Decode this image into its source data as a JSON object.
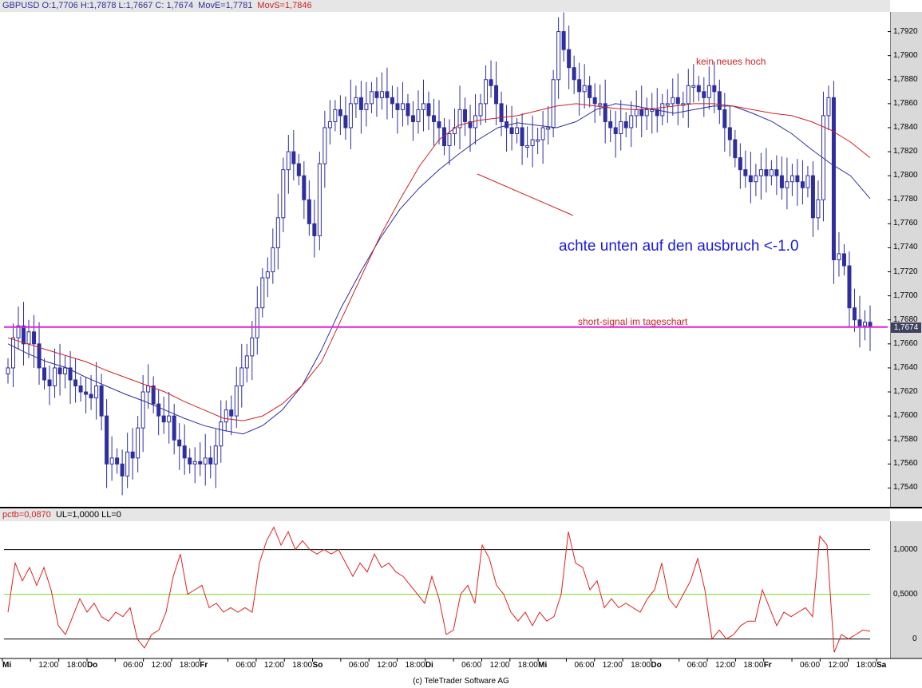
{
  "header_main": {
    "symbol_ohlc": "GBPUSD O:1,7706 H:1,7878 L:1,7667 C: 1,7674",
    "move": "MovE=1,7781",
    "movs": "MovS=1,7846"
  },
  "header_ind": {
    "pctb": "pctb=0,0870",
    "ul_ll": "UL=1,0000 LL=0"
  },
  "colors": {
    "candle": "#2e2e9e",
    "ema": "#2e2e9e",
    "sma": "#cc2222",
    "support": "#e020e0",
    "pctb": "#dd2222",
    "ul_line": "#000000",
    "ll_line": "#000000",
    "mid_line": "#7cdc2c"
  },
  "annotations": {
    "kein_hoch": "kein neues hoch",
    "ausbruch": "achte unten auf den ausbruch <-1.0",
    "short_signal": "short-signal im tageschart"
  },
  "price_label": "1,7674",
  "credit": "(c) TeleTrader Software AG",
  "chart_data": [
    {
      "type": "candlestick",
      "y_ticks": [
        "1,7920",
        "1,7900",
        "1,7880",
        "1,7860",
        "1,7840",
        "1,7820",
        "1,7800",
        "1,7780",
        "1,7760",
        "1,7740",
        "1,7720",
        "1,7700",
        "1,7680",
        "1,7660",
        "1,7640",
        "1,7620",
        "1,7600",
        "1,7580",
        "1,7560",
        "1,7540"
      ],
      "ylim": [
        1.7525,
        1.7935
      ],
      "support_level": 1.7674,
      "x_ticks": [
        {
          "label": "Mi",
          "bold": true
        },
        {
          "label": "12:00"
        },
        {
          "label": "18:00"
        },
        {
          "label": "Do",
          "bold": true
        },
        {
          "label": "06:00"
        },
        {
          "label": "12:00"
        },
        {
          "label": "18:00"
        },
        {
          "label": "Fr",
          "bold": true
        },
        {
          "label": "06:00"
        },
        {
          "label": "12:00"
        },
        {
          "label": "18:00"
        },
        {
          "label": "So",
          "bold": true
        },
        {
          "label": "06:00"
        },
        {
          "label": "12:00"
        },
        {
          "label": "18:00"
        },
        {
          "label": "Di",
          "bold": true
        },
        {
          "label": "06:00"
        },
        {
          "label": "12:00"
        },
        {
          "label": "18:00"
        },
        {
          "label": "Mi",
          "bold": true
        },
        {
          "label": "06:00"
        },
        {
          "label": "12:00"
        },
        {
          "label": "18:00"
        },
        {
          "label": "Do",
          "bold": true
        },
        {
          "label": "06:00"
        },
        {
          "label": "12:00"
        },
        {
          "label": "18:00"
        },
        {
          "label": "Fr",
          "bold": true
        },
        {
          "label": "06:00"
        },
        {
          "label": "12:00"
        },
        {
          "label": "18:00"
        },
        {
          "label": "Sa",
          "bold": true
        }
      ],
      "close_path": [
        1.764,
        1.7665,
        1.7675,
        1.766,
        1.767,
        1.766,
        1.764,
        1.763,
        1.7625,
        1.764,
        1.7635,
        1.764,
        1.763,
        1.7625,
        1.762,
        1.7618,
        1.7615,
        1.7625,
        1.76,
        1.756,
        1.7565,
        1.756,
        1.755,
        1.757,
        1.7565,
        1.759,
        1.762,
        1.7625,
        1.761,
        1.76,
        1.7595,
        1.76,
        1.758,
        1.7575,
        1.7565,
        1.756,
        1.7562,
        1.756,
        1.7565,
        1.756,
        1.7575,
        1.7595,
        1.7605,
        1.76,
        1.7625,
        1.764,
        1.765,
        1.7665,
        1.769,
        1.7715,
        1.772,
        1.774,
        1.7765,
        1.7805,
        1.782,
        1.781,
        1.78,
        1.778,
        1.776,
        1.775,
        1.781,
        1.784,
        1.7845,
        1.7855,
        1.785,
        1.784,
        1.786,
        1.7865,
        1.7855,
        1.786,
        1.787,
        1.7865,
        1.787,
        1.7865,
        1.786,
        1.7855,
        1.786,
        1.785,
        1.7845,
        1.7855,
        1.786,
        1.785,
        1.7845,
        1.784,
        1.7825,
        1.7835,
        1.784,
        1.7855,
        1.7845,
        1.784,
        1.785,
        1.786,
        1.788,
        1.7875,
        1.786,
        1.7845,
        1.784,
        1.7835,
        1.784,
        1.7825,
        1.7825,
        1.783,
        1.783,
        1.784,
        1.784,
        1.788,
        1.792,
        1.7905,
        1.789,
        1.788,
        1.787,
        1.7875,
        1.7865,
        1.786,
        1.786,
        1.7845,
        1.784,
        1.7835,
        1.7845,
        1.784,
        1.785,
        1.7855,
        1.785,
        1.7855,
        1.7855,
        1.785,
        1.786,
        1.786,
        1.7865,
        1.786,
        1.786,
        1.7875,
        1.7875,
        1.787,
        1.7865,
        1.7875,
        1.787,
        1.7855,
        1.784,
        1.783,
        1.7815,
        1.7805,
        1.78,
        1.7795,
        1.78,
        1.7805,
        1.78,
        1.7805,
        1.78,
        1.779,
        1.7795,
        1.78,
        1.7795,
        1.779,
        1.78,
        1.7765,
        1.778,
        1.785,
        1.7865,
        1.773,
        1.7735,
        1.7725,
        1.769,
        1.768,
        1.7675,
        1.7678,
        1.7674
      ],
      "ema_path": [
        1.766,
        1.7652,
        1.7645,
        1.764,
        1.7632,
        1.7625,
        1.7618,
        1.7612,
        1.7605,
        1.7598,
        1.7592,
        1.7588,
        1.7585,
        1.7592,
        1.7605,
        1.7625,
        1.7655,
        1.769,
        1.772,
        1.7748,
        1.7772,
        1.779,
        1.7805,
        1.7818,
        1.783,
        1.784,
        1.7844,
        1.7842,
        1.784,
        1.7845,
        1.7855,
        1.786,
        1.7858,
        1.7855,
        1.7852,
        1.7855,
        1.7858,
        1.7858,
        1.7852,
        1.7845,
        1.7835,
        1.7822,
        1.781,
        1.78,
        1.7781
      ],
      "sma_path": [
        1.7665,
        1.766,
        1.7655,
        1.765,
        1.7645,
        1.7638,
        1.7632,
        1.7626,
        1.762,
        1.7612,
        1.7605,
        1.7598,
        1.7596,
        1.76,
        1.761,
        1.7625,
        1.7645,
        1.768,
        1.7715,
        1.775,
        1.778,
        1.7808,
        1.783,
        1.7842,
        1.7846,
        1.7848,
        1.785,
        1.7854,
        1.7858,
        1.786,
        1.7858,
        1.7856,
        1.7855,
        1.7856,
        1.7858,
        1.786,
        1.786,
        1.7858,
        1.7855,
        1.7852,
        1.785,
        1.7845,
        1.7838,
        1.7828,
        1.7815
      ]
    },
    {
      "type": "line",
      "series": [
        {
          "name": "pctb",
          "values": [
            0.3,
            0.85,
            0.65,
            0.8,
            0.6,
            0.8,
            0.55,
            0.15,
            0.05,
            0.25,
            0.45,
            0.3,
            0.4,
            0.25,
            0.2,
            0.3,
            0.25,
            0.35,
            0.0,
            -0.1,
            0.05,
            0.1,
            0.3,
            0.7,
            0.95,
            0.5,
            0.55,
            0.6,
            0.35,
            0.4,
            0.3,
            0.35,
            0.3,
            0.35,
            0.3,
            0.85,
            1.1,
            1.25,
            1.05,
            1.2,
            1.0,
            1.1,
            1.0,
            0.95,
            1.0,
            0.95,
            1.0,
            0.85,
            0.7,
            0.85,
            0.75,
            0.95,
            0.8,
            0.85,
            0.75,
            0.7,
            0.6,
            0.5,
            0.4,
            0.7,
            0.45,
            0.05,
            0.1,
            0.5,
            0.6,
            0.4,
            1.05,
            0.9,
            0.6,
            0.5,
            0.3,
            0.2,
            0.3,
            0.15,
            0.3,
            0.2,
            0.25,
            0.5,
            1.2,
            0.85,
            0.8,
            0.55,
            0.65,
            0.35,
            0.45,
            0.35,
            0.4,
            0.35,
            0.3,
            0.45,
            0.55,
            0.85,
            0.45,
            0.35,
            0.5,
            0.65,
            0.9,
            0.55,
            0.0,
            0.1,
            0.0,
            0.05,
            0.15,
            0.2,
            0.2,
            0.55,
            0.35,
            0.15,
            0.3,
            0.25,
            0.3,
            0.35,
            0.25,
            1.15,
            1.05,
            -0.15,
            0.05,
            0.0,
            0.05,
            0.1,
            0.087
          ]
        }
      ],
      "y_ticks": [
        "1,0000",
        "0,5000",
        "0"
      ],
      "ylim": [
        -0.2,
        1.3
      ],
      "ul": 1.0,
      "mid": 0.5,
      "ll": 0.0
    }
  ]
}
